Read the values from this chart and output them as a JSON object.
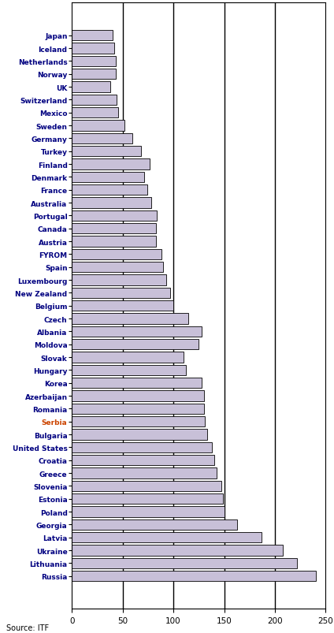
{
  "categories": [
    "Japan",
    "Iceland",
    "Netherlands",
    "Norway",
    "UK",
    "Switzerland",
    "Mexico",
    "Sweden",
    "Germany",
    "Turkey",
    "Finland",
    "Denmark",
    "France",
    "Australia",
    "Portugal",
    "Canada",
    "Austria",
    "FYROM",
    "Spain",
    "Luxembourg",
    "New Zealand",
    "Belgium",
    "Czech",
    "Albania",
    "Moldova",
    "Slovak",
    "Hungary",
    "Korea",
    "Azerbaijan",
    "Romania",
    "Serbia",
    "Bulgaria",
    "United States",
    "Croatia",
    "Greece",
    "Slovenia",
    "Estonia",
    "Poland",
    "Georgia",
    "Latvia",
    "Ukraine",
    "Lithuania",
    "Russia"
  ],
  "values": [
    40,
    42,
    43,
    43,
    38,
    44,
    46,
    52,
    60,
    68,
    77,
    71,
    74,
    78,
    84,
    83,
    83,
    88,
    90,
    93,
    97,
    100,
    115,
    128,
    125,
    110,
    112,
    128,
    130,
    130,
    131,
    133,
    138,
    140,
    143,
    147,
    149,
    150,
    163,
    187,
    208,
    222,
    240
  ],
  "bar_color": "#c8c0d8",
  "bar_edge_color": "#000000",
  "highlight_labels": [
    "Serbia"
  ],
  "normal_label_color": "#000080",
  "highlight_color": "#cc4400",
  "source_text": "Source: ITF",
  "xlim": [
    0,
    250
  ],
  "xticks": [
    0,
    50,
    100,
    150,
    200,
    250
  ],
  "vlines": [
    50,
    100,
    150,
    200
  ],
  "background_color": "#ffffff",
  "label_fontsize": 6.5,
  "tick_fontsize": 7.5,
  "bar_height": 0.82
}
